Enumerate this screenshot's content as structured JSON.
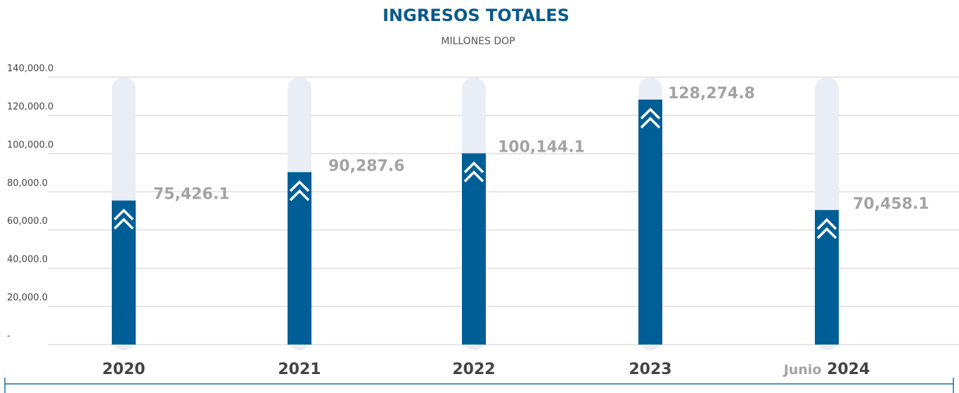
{
  "chart_data": {
    "type": "bar",
    "title": "INGRESOS TOTALES",
    "subtitle": "MILLONES DOP",
    "categories": [
      "2020",
      "2021",
      "2022",
      "2023",
      "2024"
    ],
    "category_prefixes": [
      null,
      null,
      null,
      null,
      "Junio"
    ],
    "values": [
      75426.1,
      90287.6,
      100144.1,
      128274.8,
      70458.1
    ],
    "value_labels": [
      "75,426.1",
      "90,287.6",
      "100,144.1",
      "128,274.8",
      "70,458.1"
    ],
    "color": "#005e96",
    "track_color": "#e9eef6",
    "ylim": [
      0,
      140000
    ],
    "yticks": [
      {
        "value": 0,
        "label": "-"
      },
      {
        "value": 20000,
        "label": "20,000.0"
      },
      {
        "value": 40000,
        "label": "40,000.0"
      },
      {
        "value": 60000,
        "label": "60,000.0"
      },
      {
        "value": 80000,
        "label": "80,000.0"
      },
      {
        "value": 100000,
        "label": "100,000.0"
      },
      {
        "value": 120000,
        "label": "120,000.0"
      },
      {
        "value": 140000,
        "label": "140,000.0"
      }
    ],
    "grid": true
  }
}
